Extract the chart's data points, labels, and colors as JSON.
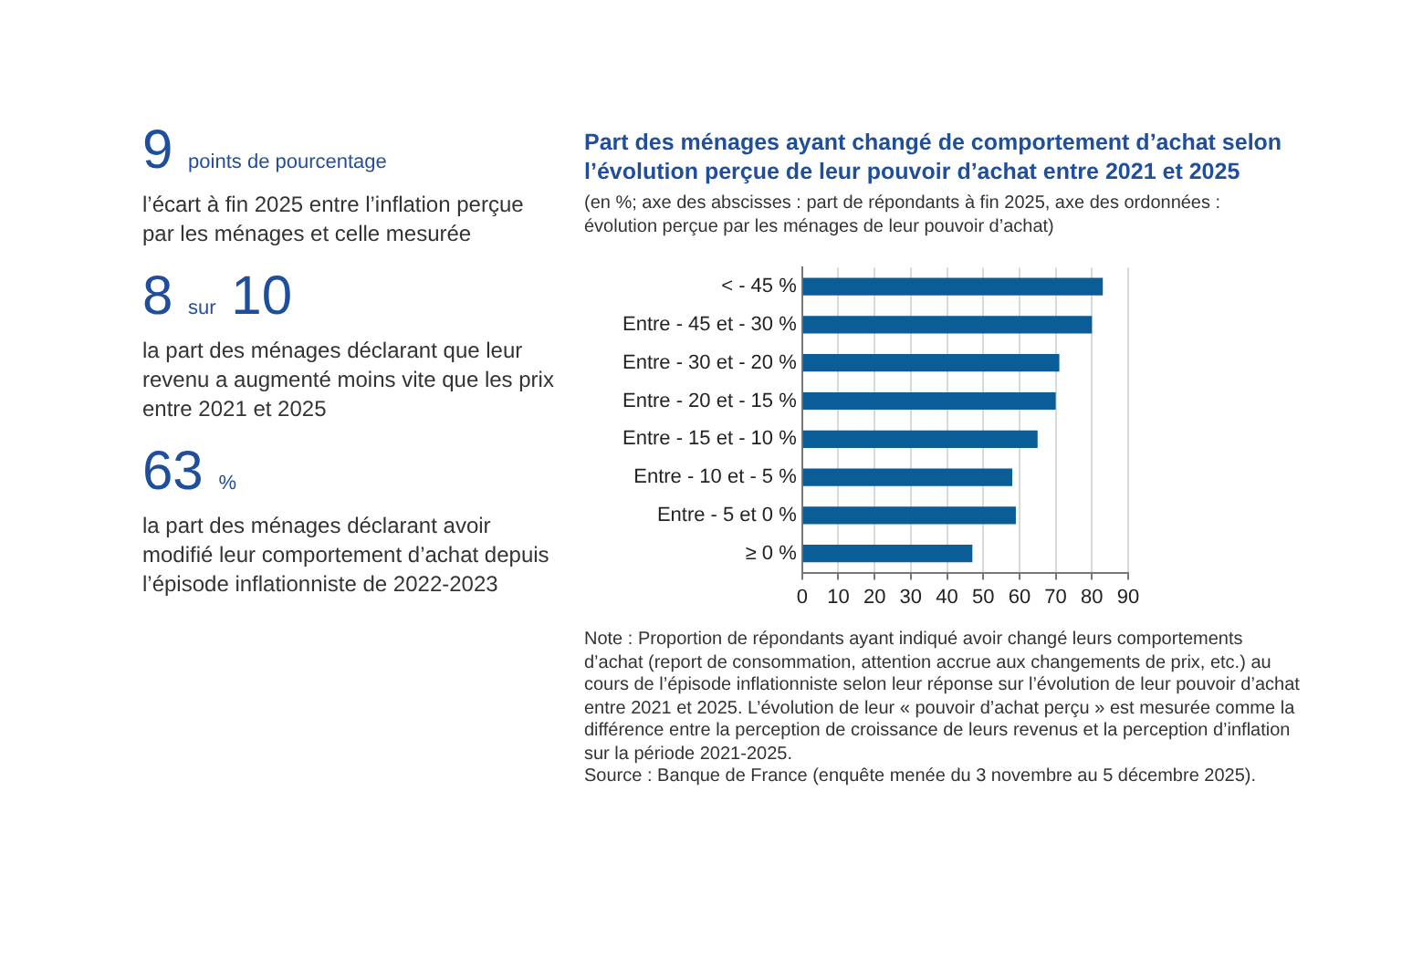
{
  "chart_data": [
    {
      "type": "other",
      "color": "#1f4e9c",
      "annotations": [
        "9 points de pourcentage",
        "l’écart à fin 2025 entre l’inflation perçue par les ménages et celle mesurée",
        "8 sur 10",
        "la part des ménages déclarant que leur revenu a augmenté moins vite que les prix entre 2021 et 2025",
        "63 %",
        "la part des ménages déclarant avoir modifié leur comportement d’achat depuis l’épisode inflationniste de 2022-2023"
      ]
    },
    {
      "type": "bar",
      "orientation": "horizontal",
      "title": "Part des ménages ayant changé de comportement d’achat selon l’évolution perçue de leur pouvoir d’achat entre 2021 et 2025",
      "subtitle": "(en %; axe des abscisses : part de répondants à fin 2025, axe des ordonnées : évolution perçue par les ménages de leur pouvoir d’achat)",
      "categories": [
        "< - 45 %",
        "Entre - 45 et - 30 %",
        "Entre - 30 et - 20 %",
        "Entre - 20 et - 15 %",
        "Entre - 15 et - 10 %",
        "Entre - 10 et - 5 %",
        "Entre - 5 et 0 %",
        "≥ 0 %"
      ],
      "values": [
        83,
        80,
        71,
        70,
        65,
        58,
        59,
        47
      ],
      "color": "#0b5d97",
      "xlim": [
        0,
        90
      ],
      "xticks": [
        0,
        10,
        20,
        30,
        40,
        50,
        60,
        70,
        80,
        90
      ],
      "grid": "x",
      "annotations": [
        "Note : Proportion de répondants ayant indiqué avoir changé leurs comportements d’achat (report de consommation, attention accrue aux changements de prix, etc.) au cours de l’épisode inflationniste selon leur réponse sur l’évolution de leur pouvoir d’achat entre 2021 et 2025. L’évolution de leur « pouvoir d’achat perçu » est mesurée comme la différence entre la perception de croissance de leurs revenus et la perception d’inflation sur la période 2021-2025.",
        "Source : Banque de France (enquête menée du 3 novembre au 5 décembre 2025)."
      ]
    }
  ]
}
